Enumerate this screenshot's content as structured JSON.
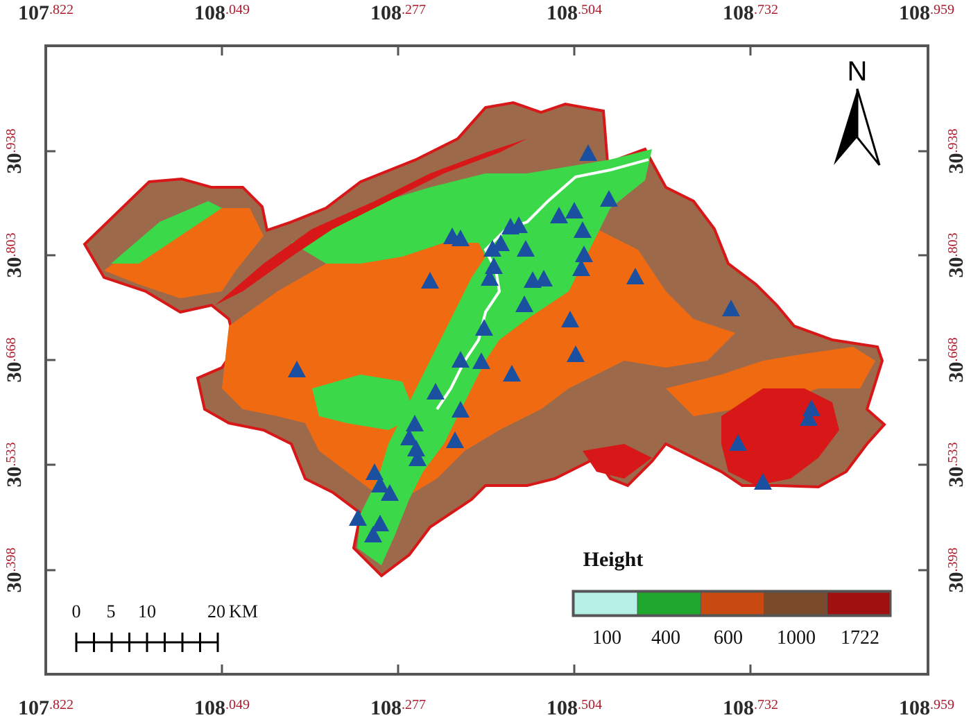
{
  "longitude_labels": [
    {
      "main": "107",
      "frac": ".822"
    },
    {
      "main": "108",
      "frac": ".049"
    },
    {
      "main": "108",
      "frac": ".277"
    },
    {
      "main": "108",
      "frac": ".504"
    },
    {
      "main": "108",
      "frac": ".732"
    },
    {
      "main": "108",
      "frac": ".959"
    }
  ],
  "latitude_labels": [
    {
      "main": "30",
      "frac": ".938"
    },
    {
      "main": "30",
      "frac": ".803"
    },
    {
      "main": "30",
      "frac": ".668"
    },
    {
      "main": "30",
      "frac": ".533"
    },
    {
      "main": "30",
      "frac": ".398"
    }
  ],
  "north_arrow": {
    "label": "N"
  },
  "scale_bar": {
    "ticks": [
      "0",
      "5",
      "10",
      "20"
    ],
    "unit": "KM"
  },
  "legend": {
    "title": "Height",
    "classes": [
      {
        "color": "#b4f0e6"
      },
      {
        "color": "#1fa82e"
      },
      {
        "color": "#c84a10"
      },
      {
        "color": "#7a4a2a"
      },
      {
        "color": "#a01010"
      }
    ],
    "break_labels": [
      "100",
      "400",
      "600",
      "1000",
      "1722"
    ]
  },
  "colors": {
    "low_land": "#3bd84a",
    "mid_land": "#f06a12",
    "high_land": "#9c6a4a",
    "peak_land": "#d81818",
    "river": "#ffffff",
    "sample_marker": "#1b4fa0"
  },
  "sample_marker_icon": "blue-triangle"
}
